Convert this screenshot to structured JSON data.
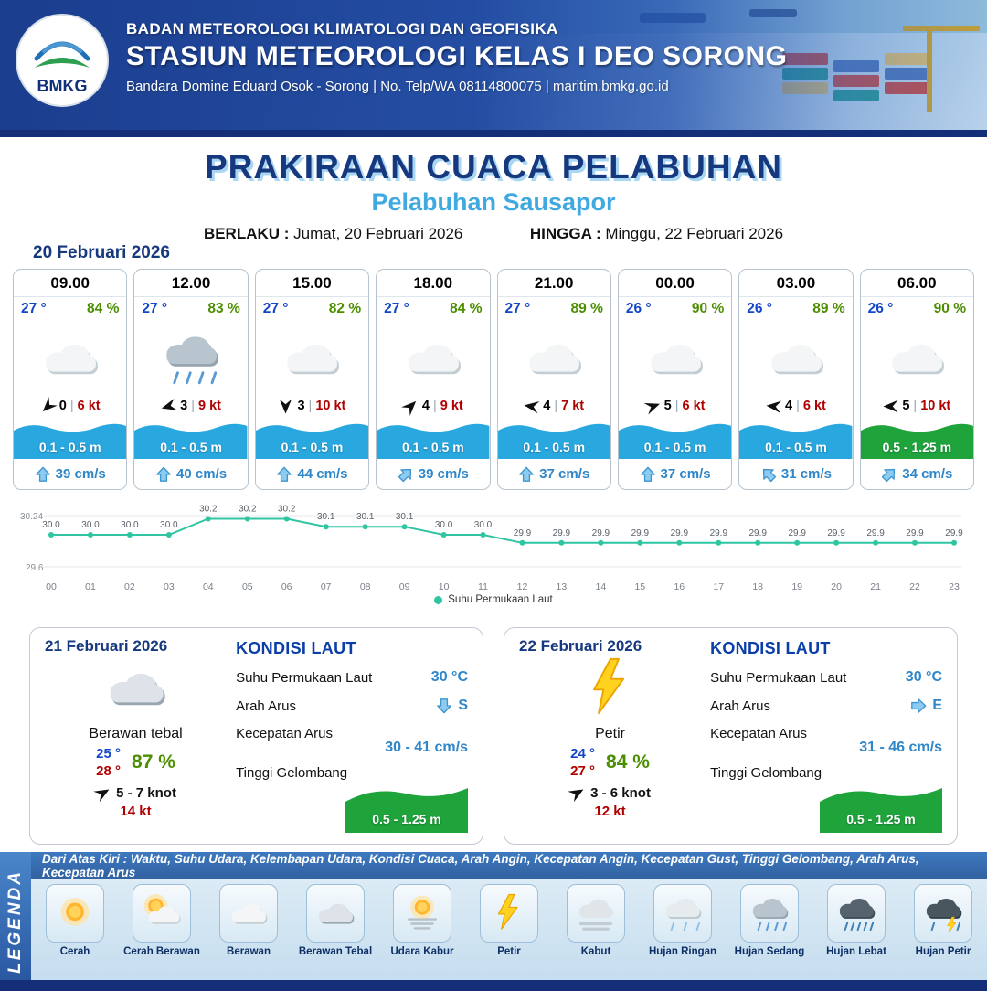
{
  "colors": {
    "navy": "#16387e",
    "light_blue": "#3fa9e0",
    "wave_blue": "#29a8e0",
    "wave_green": "#1fa43c",
    "temp_blue": "#1346c8",
    "humidity_green": "#4b8f00",
    "speed_red": "#b00000",
    "line_teal": "#2fc5a2"
  },
  "header": {
    "agency_line": "BADAN METEOROLOGI KLIMATOLOGI DAN GEOFISIKA",
    "station_line": "STASIUN METEOROLOGI KELAS I DEO SORONG",
    "contact_line": "Bandara Domine Eduard Osok - Sorong | No. Telp/WA 08114800075 | maritim.bmkg.go.id",
    "logo_text": "BMKG"
  },
  "title": {
    "main": "PRAKIRAAN CUACA PELABUHAN",
    "subtitle": "Pelabuhan Sausapor",
    "valid_label": "BERLAKU :",
    "valid_value": "Jumat, 20 Februari 2026",
    "until_label": "HINGGA :",
    "until_value": "Minggu, 22 Februari 2026"
  },
  "forecast": {
    "date": "20 Februari 2026",
    "cards": [
      {
        "time": "09.00",
        "temp": "27 °",
        "humidity": "84 %",
        "icon": "cloud",
        "wind_rot": -45,
        "gust": "0",
        "wind_speed": "6 kt",
        "wave": "0.1 - 0.5 m",
        "wave_color": "blue",
        "current_rot": 0,
        "current": "39 cm/s"
      },
      {
        "time": "12.00",
        "temp": "27 °",
        "humidity": "83 %",
        "icon": "rain-medium",
        "wind_rot": -15,
        "gust": "3",
        "wind_speed": "9 kt",
        "wave": "0.1 - 0.5 m",
        "wave_color": "blue",
        "current_rot": 0,
        "current": "40 cm/s"
      },
      {
        "time": "15.00",
        "temp": "27 °",
        "humidity": "82 %",
        "icon": "cloud",
        "wind_rot": -90,
        "gust": "3",
        "wind_speed": "10 kt",
        "wave": "0.1 - 0.5 m",
        "wave_color": "blue",
        "current_rot": 0,
        "current": "44 cm/s"
      },
      {
        "time": "18.00",
        "temp": "27 °",
        "humidity": "84 %",
        "icon": "cloud",
        "wind_rot": 135,
        "gust": "4",
        "wind_speed": "9 kt",
        "wave": "0.1 - 0.5 m",
        "wave_color": "blue",
        "current_rot": 45,
        "current": "39 cm/s"
      },
      {
        "time": "21.00",
        "temp": "27 °",
        "humidity": "89 %",
        "icon": "cloud",
        "wind_rot": 8,
        "gust": "4",
        "wind_speed": "7 kt",
        "wave": "0.1 - 0.5 m",
        "wave_color": "blue",
        "current_rot": 0,
        "current": "37 cm/s"
      },
      {
        "time": "00.00",
        "temp": "26 °",
        "humidity": "90 %",
        "icon": "cloud",
        "wind_rot": 160,
        "gust": "5",
        "wind_speed": "6 kt",
        "wave": "0.1 - 0.5 m",
        "wave_color": "blue",
        "current_rot": 0,
        "current": "37 cm/s"
      },
      {
        "time": "03.00",
        "temp": "26 °",
        "humidity": "89 %",
        "icon": "cloud",
        "wind_rot": 5,
        "gust": "4",
        "wind_speed": "6 kt",
        "wave": "0.1 - 0.5 m",
        "wave_color": "blue",
        "current_rot": -45,
        "current": "31 cm/s"
      },
      {
        "time": "06.00",
        "temp": "26 °",
        "humidity": "90 %",
        "icon": "cloud",
        "wind_rot": 0,
        "gust": "5",
        "wind_speed": "10 kt",
        "wave": "0.5 - 1.25 m",
        "wave_color": "green",
        "current_rot": 45,
        "current": "34 cm/s"
      }
    ]
  },
  "chart_data": {
    "type": "line",
    "series_name": "Suhu Permukaan Laut",
    "x": [
      "00",
      "01",
      "02",
      "03",
      "04",
      "05",
      "06",
      "07",
      "08",
      "09",
      "10",
      "11",
      "12",
      "13",
      "14",
      "15",
      "16",
      "17",
      "18",
      "19",
      "20",
      "21",
      "22",
      "23"
    ],
    "values": [
      30.0,
      30.0,
      30.0,
      30.0,
      30.2,
      30.2,
      30.2,
      30.1,
      30.1,
      30.1,
      30.0,
      30.0,
      29.9,
      29.9,
      29.9,
      29.9,
      29.9,
      29.9,
      29.9,
      29.9,
      29.9,
      29.9,
      29.9,
      29.9
    ],
    "ylim": [
      29.6,
      30.24
    ],
    "xlabel": "",
    "ylabel": "",
    "grid": true,
    "legend_position": "bottom"
  },
  "days": [
    {
      "date": "21 Februari 2026",
      "icon": "cloud-thick",
      "condition": "Berawan tebal",
      "temp_min": "25 °",
      "temp_max": "28 °",
      "humidity": "87 %",
      "wind_rot": 150,
      "wind": "5 - 7 knot",
      "gust": "14 kt",
      "sea": {
        "heading": "KONDISI LAUT",
        "sst_label": "Suhu Permukaan Laut",
        "sst": "30 °C",
        "current_dir_label": "Arah Arus",
        "current_dir_deg": 180,
        "current_dir_text": "S",
        "current_speed_label": "Kecepatan Arus",
        "current_speed": "30 - 41 cm/s",
        "wave_label": "Tinggi Gelombang",
        "wave": "0.5 - 1.25 m"
      }
    },
    {
      "date": "22 Februari 2026",
      "icon": "lightning",
      "condition": "Petir",
      "temp_min": "24 °",
      "temp_max": "27 °",
      "humidity": "84 %",
      "wind_rot": 150,
      "wind": "3 - 6 knot",
      "gust": "12 kt",
      "sea": {
        "heading": "KONDISI LAUT",
        "sst_label": "Suhu Permukaan Laut",
        "sst": "30 °C",
        "current_dir_label": "Arah Arus",
        "current_dir_deg": 90,
        "current_dir_text": "E",
        "current_speed_label": "Kecepatan Arus",
        "current_speed": "31 - 46 cm/s",
        "wave_label": "Tinggi Gelombang",
        "wave": "0.5 - 1.25 m"
      }
    }
  ],
  "legend": {
    "title": "LEGENDA",
    "description": "Dari Atas Kiri : Waktu, Suhu Udara, Kelembapan Udara, Kondisi Cuaca, Arah Angin, Kecepatan Angin, Kecepatan Gust, Tinggi Gelombang, Arah Arus, Kecepatan Arus",
    "items": [
      {
        "label": "Cerah",
        "icon": "sun"
      },
      {
        "label": "Cerah Berawan",
        "icon": "sun-cloud"
      },
      {
        "label": "Berawan",
        "icon": "cloud"
      },
      {
        "label": "Berawan Tebal",
        "icon": "cloud-thick"
      },
      {
        "label": "Udara Kabur",
        "icon": "haze"
      },
      {
        "label": "Petir",
        "icon": "lightning"
      },
      {
        "label": "Kabut",
        "icon": "fog"
      },
      {
        "label": "Hujan Ringan",
        "icon": "rain-light"
      },
      {
        "label": "Hujan Sedang",
        "icon": "rain-medium"
      },
      {
        "label": "Hujan Lebat",
        "icon": "rain-heavy"
      },
      {
        "label": "Hujan Petir",
        "icon": "rain-lightning"
      }
    ]
  }
}
